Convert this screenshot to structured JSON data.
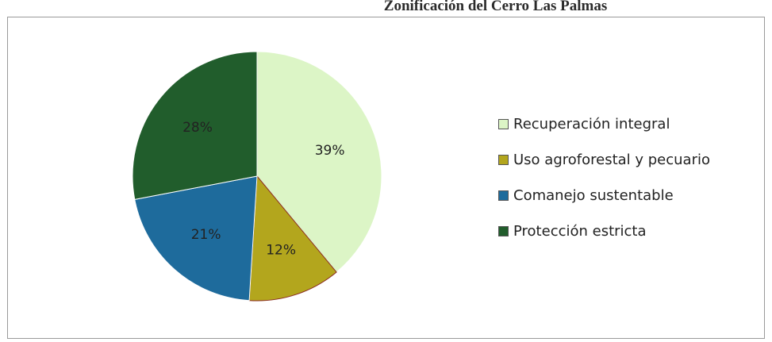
{
  "header": {
    "title": "Zonificación del Cerro Las Palmas"
  },
  "chart_data": {
    "type": "pie",
    "title": "",
    "start_angle_deg": 0,
    "direction": "clockwise",
    "legend_position": "right",
    "slices": [
      {
        "label": "Recuperación integral",
        "value": 39,
        "display": "39%",
        "color": "#dcf5c6"
      },
      {
        "label": "Uso agroforestal y pecuario",
        "value": 12,
        "display": "12%",
        "color": "#b3a61d"
      },
      {
        "label": "Comanejo sustentable",
        "value": 21,
        "display": "21%",
        "color": "#1e6b9c"
      },
      {
        "label": "Protección estricta",
        "value": 28,
        "display": "28%",
        "color": "#215d2c"
      }
    ]
  }
}
